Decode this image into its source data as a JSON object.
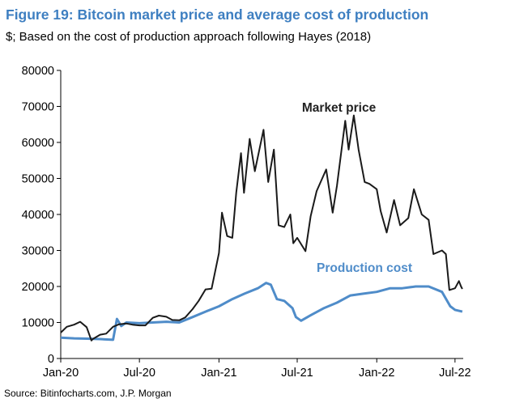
{
  "title": "Figure 19: Bitcoin market price and average cost of production",
  "subtitle": "$; Based on the cost of production approach following Hayes (2018)",
  "source": "Source: Bitinfocharts.com, J.P. Morgan",
  "colors": {
    "title": "#3e7fc1",
    "market": "#1a1a1a",
    "production": "#4f8cc9"
  },
  "chart_data": {
    "type": "line",
    "title": "Figure 19: Bitcoin market price and average cost of production",
    "ylim": [
      0,
      80000
    ],
    "xlim": [
      "2020-01-01",
      "2022-07-20"
    ],
    "grid": false,
    "legend": "annotations",
    "yticks": [
      0,
      10000,
      20000,
      30000,
      40000,
      50000,
      60000,
      70000,
      80000
    ],
    "yticklabels": [
      "0",
      "10000",
      "20000",
      "30000",
      "40000",
      "50000",
      "60000",
      "70000",
      "80000"
    ],
    "xticks": [
      "2020-01-01",
      "2020-07-01",
      "2021-01-01",
      "2021-07-01",
      "2022-01-01",
      "2022-07-01"
    ],
    "xticklabels": [
      "Jan-20",
      "Jul-20",
      "Jan-21",
      "Jul-21",
      "Jan-22",
      "Jul-22"
    ],
    "series": [
      {
        "name": "Market price",
        "values": [
          [
            "2020-01-01",
            7200
          ],
          [
            "2020-01-15",
            8800
          ],
          [
            "2020-02-01",
            9400
          ],
          [
            "2020-02-15",
            10200
          ],
          [
            "2020-03-01",
            8700
          ],
          [
            "2020-03-12",
            5000
          ],
          [
            "2020-03-15",
            5400
          ],
          [
            "2020-04-01",
            6600
          ],
          [
            "2020-04-15",
            6900
          ],
          [
            "2020-05-01",
            8800
          ],
          [
            "2020-05-15",
            9500
          ],
          [
            "2020-06-01",
            9700
          ],
          [
            "2020-06-15",
            9400
          ],
          [
            "2020-07-01",
            9200
          ],
          [
            "2020-07-15",
            9200
          ],
          [
            "2020-08-01",
            11300
          ],
          [
            "2020-08-15",
            11900
          ],
          [
            "2020-09-01",
            11600
          ],
          [
            "2020-09-15",
            10700
          ],
          [
            "2020-10-01",
            10600
          ],
          [
            "2020-10-15",
            11400
          ],
          [
            "2020-11-01",
            13700
          ],
          [
            "2020-11-15",
            16000
          ],
          [
            "2020-12-01",
            19200
          ],
          [
            "2020-12-15",
            19400
          ],
          [
            "2021-01-01",
            29300
          ],
          [
            "2021-01-08",
            40500
          ],
          [
            "2021-01-20",
            34000
          ],
          [
            "2021-02-01",
            33500
          ],
          [
            "2021-02-10",
            46000
          ],
          [
            "2021-02-21",
            57000
          ],
          [
            "2021-02-28",
            46000
          ],
          [
            "2021-03-13",
            61000
          ],
          [
            "2021-03-25",
            52000
          ],
          [
            "2021-04-14",
            63500
          ],
          [
            "2021-04-25",
            49000
          ],
          [
            "2021-05-08",
            58000
          ],
          [
            "2021-05-19",
            37000
          ],
          [
            "2021-06-01",
            36500
          ],
          [
            "2021-06-15",
            40000
          ],
          [
            "2021-06-22",
            32000
          ],
          [
            "2021-07-01",
            33500
          ],
          [
            "2021-07-20",
            29800
          ],
          [
            "2021-08-01",
            39500
          ],
          [
            "2021-08-15",
            46500
          ],
          [
            "2021-09-06",
            52500
          ],
          [
            "2021-09-21",
            40500
          ],
          [
            "2021-10-01",
            48000
          ],
          [
            "2021-10-20",
            66000
          ],
          [
            "2021-10-28",
            58000
          ],
          [
            "2021-11-09",
            67500
          ],
          [
            "2021-11-20",
            58000
          ],
          [
            "2021-12-04",
            49000
          ],
          [
            "2021-12-15",
            48500
          ],
          [
            "2022-01-01",
            47000
          ],
          [
            "2022-01-10",
            41000
          ],
          [
            "2022-01-24",
            35000
          ],
          [
            "2022-02-10",
            44000
          ],
          [
            "2022-02-24",
            37000
          ],
          [
            "2022-03-15",
            39000
          ],
          [
            "2022-03-28",
            47000
          ],
          [
            "2022-04-15",
            40000
          ],
          [
            "2022-05-01",
            38500
          ],
          [
            "2022-05-12",
            29000
          ],
          [
            "2022-06-01",
            30000
          ],
          [
            "2022-06-10",
            29000
          ],
          [
            "2022-06-18",
            19000
          ],
          [
            "2022-07-01",
            19500
          ],
          [
            "2022-07-10",
            21500
          ],
          [
            "2022-07-15",
            20000
          ],
          [
            "2022-07-18",
            19300
          ]
        ]
      },
      {
        "name": "Production cost",
        "values": [
          [
            "2020-01-01",
            5800
          ],
          [
            "2020-02-01",
            5600
          ],
          [
            "2020-03-01",
            5500
          ],
          [
            "2020-04-01",
            5400
          ],
          [
            "2020-05-01",
            5200
          ],
          [
            "2020-05-10",
            11000
          ],
          [
            "2020-05-20",
            9000
          ],
          [
            "2020-06-01",
            10000
          ],
          [
            "2020-07-01",
            9800
          ],
          [
            "2020-08-01",
            10000
          ],
          [
            "2020-09-01",
            10200
          ],
          [
            "2020-10-01",
            10000
          ],
          [
            "2020-11-01",
            11500
          ],
          [
            "2020-12-01",
            13000
          ],
          [
            "2021-01-01",
            14500
          ],
          [
            "2021-02-01",
            16500
          ],
          [
            "2021-03-01",
            18000
          ],
          [
            "2021-04-01",
            19500
          ],
          [
            "2021-04-20",
            21000
          ],
          [
            "2021-05-01",
            20500
          ],
          [
            "2021-05-15",
            16500
          ],
          [
            "2021-06-01",
            16000
          ],
          [
            "2021-06-20",
            14000
          ],
          [
            "2021-06-28",
            11500
          ],
          [
            "2021-07-10",
            10500
          ],
          [
            "2021-08-01",
            12000
          ],
          [
            "2021-09-01",
            14000
          ],
          [
            "2021-10-01",
            15500
          ],
          [
            "2021-11-01",
            17500
          ],
          [
            "2021-12-01",
            18000
          ],
          [
            "2022-01-01",
            18500
          ],
          [
            "2022-02-01",
            19500
          ],
          [
            "2022-03-01",
            19500
          ],
          [
            "2022-04-01",
            20000
          ],
          [
            "2022-05-01",
            20000
          ],
          [
            "2022-06-01",
            18500
          ],
          [
            "2022-06-20",
            14500
          ],
          [
            "2022-07-01",
            13500
          ],
          [
            "2022-07-18",
            13000
          ]
        ]
      }
    ],
    "annotations": [
      {
        "text": "Market price",
        "series": "Market price"
      },
      {
        "text": "Production cost",
        "series": "Production cost"
      }
    ]
  }
}
